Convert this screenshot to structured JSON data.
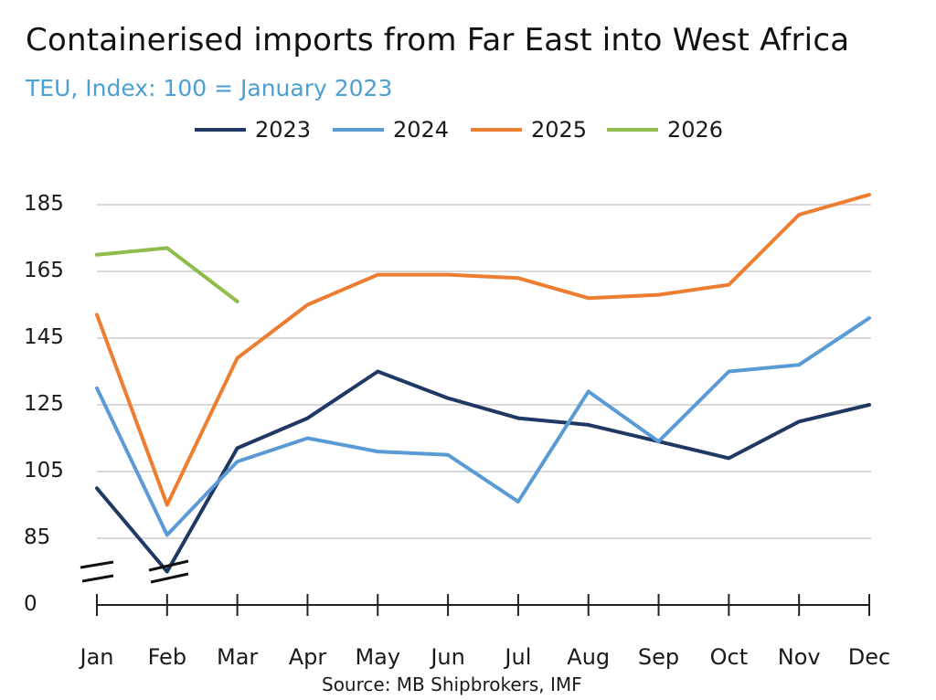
{
  "title": "Containerised imports from Far East into West Africa",
  "subtitle": "TEU, Index: 100 = January 2023",
  "source": "Source: MB Shipbrokers, IMF",
  "chart_data": {
    "type": "line",
    "categories": [
      "Jan",
      "Feb",
      "Mar",
      "Apr",
      "May",
      "Jun",
      "Jul",
      "Aug",
      "Sep",
      "Oct",
      "Nov",
      "Dec"
    ],
    "yticks": [
      "185",
      "165",
      "145",
      "125",
      "105",
      "85",
      "0"
    ],
    "ylim": [
      75,
      195
    ],
    "axis_break": "between 0 and 85",
    "grid": true,
    "legend_position": "top",
    "series": [
      {
        "name": "2023",
        "color": "#1f3864",
        "values": [
          100,
          75,
          112,
          121,
          135,
          127,
          121,
          119,
          114,
          109,
          120,
          125
        ]
      },
      {
        "name": "2024",
        "color": "#5b9bd5",
        "values": [
          130,
          86,
          108,
          115,
          111,
          110,
          96,
          129,
          114,
          135,
          137,
          151
        ]
      },
      {
        "name": "2025",
        "color": "#ed7d31",
        "values": [
          152,
          95,
          139,
          155,
          164,
          164,
          163,
          157,
          158,
          161,
          182,
          188
        ]
      },
      {
        "name": "2026",
        "color": "#8fbc4a",
        "values": [
          170,
          172,
          156,
          null,
          null,
          null,
          null,
          null,
          null,
          null,
          null,
          null
        ]
      }
    ]
  }
}
